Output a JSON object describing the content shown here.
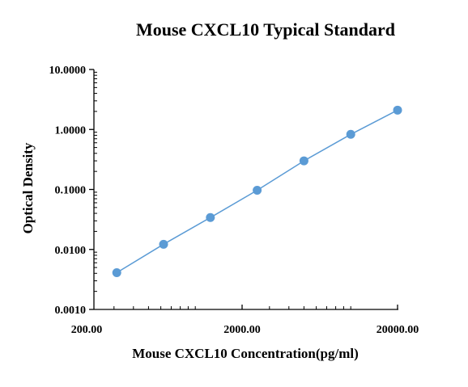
{
  "chart_data": {
    "type": "scatter",
    "title": "Mouse CXCL10 Typical Standard",
    "xlabel": "Mouse CXCL10 Concentration(pg/ml)",
    "ylabel": "Optical Density",
    "x_scale": "log",
    "y_scale": "log",
    "xlim": [
      200,
      20000
    ],
    "ylim": [
      0.001,
      10
    ],
    "x_ticks": [
      {
        "value": 200,
        "label": "200.00"
      },
      {
        "value": 2000,
        "label": "2000.00"
      },
      {
        "value": 20000,
        "label": "20000.00"
      }
    ],
    "y_ticks": [
      {
        "value": 10,
        "label": "10.0000"
      },
      {
        "value": 1,
        "label": "1.0000"
      },
      {
        "value": 0.1,
        "label": "0.1000"
      },
      {
        "value": 0.01,
        "label": "0.0100"
      },
      {
        "value": 0.001,
        "label": "0.0010"
      }
    ],
    "grid": false,
    "legend": "none",
    "series": [
      {
        "color": "#5b9bd5",
        "fit_line": true,
        "points": [
          {
            "x": 312.5,
            "y": 0.0041
          },
          {
            "x": 625,
            "y": 0.0122
          },
          {
            "x": 1250,
            "y": 0.034
          },
          {
            "x": 2500,
            "y": 0.097
          },
          {
            "x": 5000,
            "y": 0.3
          },
          {
            "x": 10000,
            "y": 0.83
          },
          {
            "x": 20000,
            "y": 2.1
          }
        ]
      }
    ]
  }
}
